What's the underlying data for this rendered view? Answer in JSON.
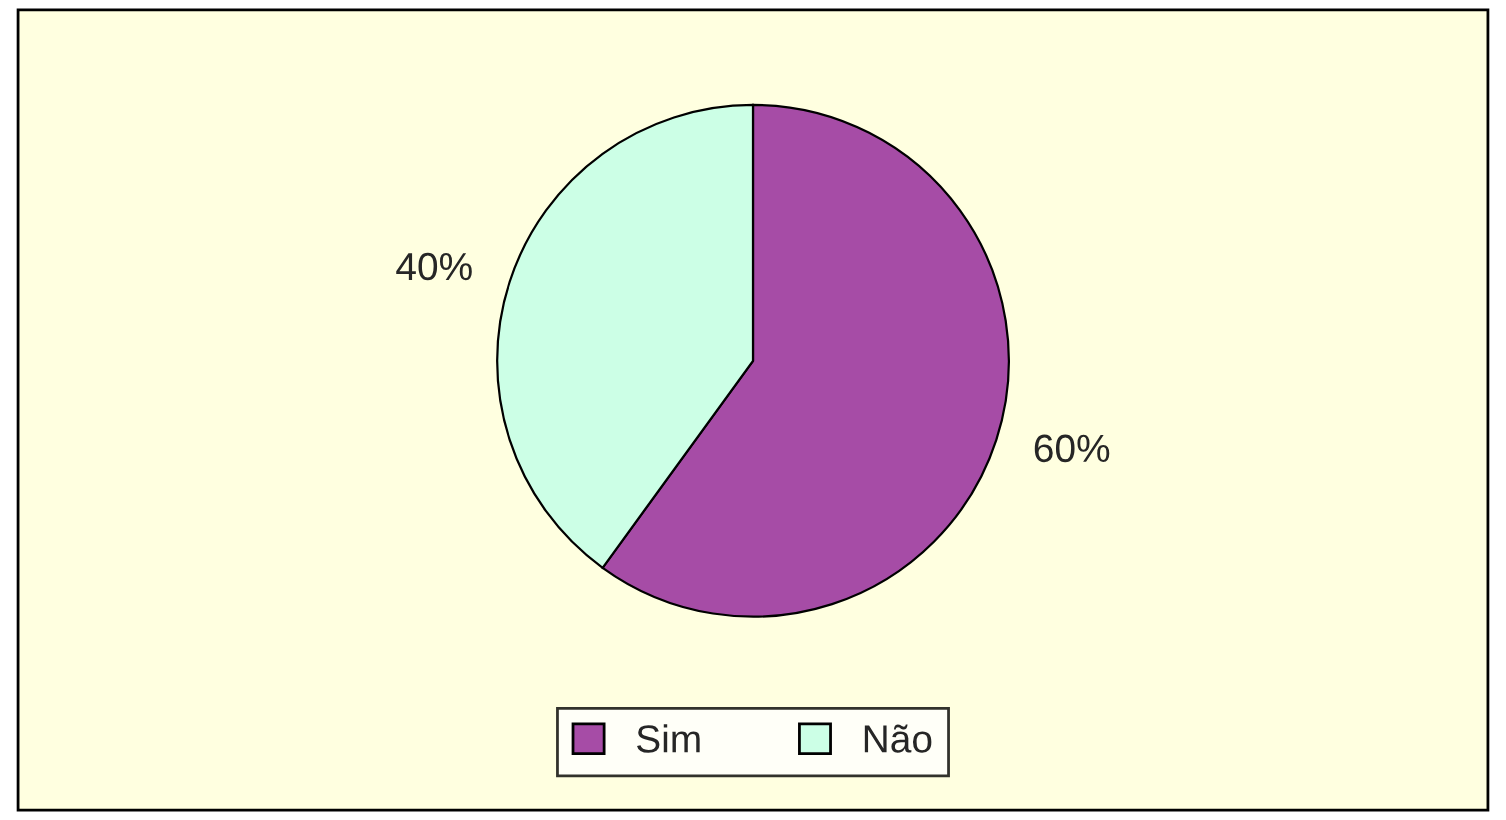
{
  "chart_data": {
    "type": "pie",
    "categories": [
      "Sim",
      "Não"
    ],
    "values": [
      60,
      40
    ],
    "colors": [
      "#a64ca6",
      "#ccffe6"
    ],
    "value_labels": [
      "60%",
      "40%"
    ],
    "legend": "bottom"
  }
}
